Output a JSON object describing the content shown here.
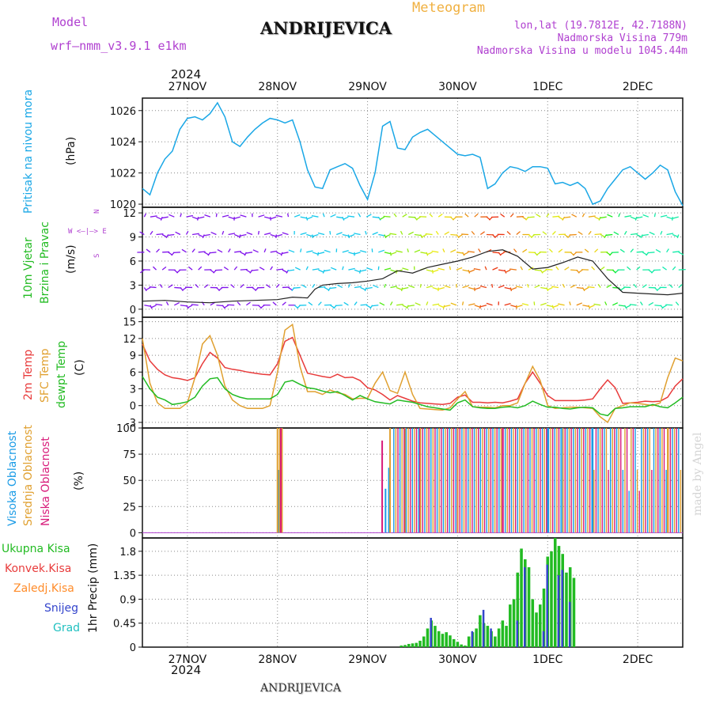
{
  "header": {
    "model_label": "Model",
    "model_name": "wrf—nmm_v3.9.1  e1km",
    "title": "ANDRIJEVICA",
    "meteogram": "Meteogram",
    "lonlat": "lon,lat (19.7812E, 42.7188N)",
    "elevation": "Nadmorska Visina 779m",
    "model_elevation": "Nadmorska Visina u modelu 1045.44m",
    "year_top": "2024",
    "year_bottom": "2024",
    "footer": "ANDRIJEVICA",
    "credit": "made by Angel"
  },
  "colors": {
    "pressure": "#1aa7e6",
    "temp2m": "#e83b3b",
    "sfctemp": "#e0a030",
    "dewpt": "#22bb22",
    "high_cloud": "#1a9be6",
    "mid_cloud": "#e0a030",
    "low_cloud": "#d81b7a",
    "total_precip": "#22bb22",
    "conv_precip": "#e83b3b",
    "grid_precip": "#ff8c2a",
    "snow": "#3344cc",
    "graupel": "#20c0c0",
    "purple_text": "#b040d0",
    "orange_text": "#f0b040"
  },
  "panel_labels": {
    "pressure": [
      "Pritisak na nivou mora",
      "(hPa)"
    ],
    "wind": [
      "10m Vjetar",
      "Brzina i Pravac",
      "(m/s)"
    ],
    "wind_compass": [
      "N",
      "W  <—|—>  E",
      "S"
    ],
    "temp": [
      "2m Temp",
      "SFC Temp",
      "dewpt Temp",
      "(C)"
    ],
    "cloud": [
      "Visoka Oblacnost",
      "Srednja Oblacnost",
      "Niska Oblacnost",
      "(%)"
    ],
    "precip_legend": [
      "Ukupna Kisa",
      "Konvek.Kisa",
      "Zaledj.Kisa",
      "Snijeg",
      "Grad"
    ],
    "precip_axis": "1hr Precip (mm)"
  },
  "chart_data": [
    {
      "type": "line",
      "name": "pressure",
      "x_ticks": [
        "27NOV",
        "28NOV",
        "29NOV",
        "30NOV",
        "1DEC",
        "2DEC"
      ],
      "y_ticks": [
        "1020",
        "1022",
        "1024",
        "1026"
      ],
      "ylim": [
        1019.8,
        1026.8
      ],
      "x_range_hours": [
        0,
        144
      ],
      "x_hours": [
        0,
        2,
        4,
        6,
        8,
        10,
        12,
        14,
        16,
        18,
        20,
        22,
        24,
        26,
        28,
        30,
        32,
        34,
        36,
        38,
        40,
        42,
        44,
        46,
        48,
        50,
        52,
        54,
        56,
        58,
        60,
        62,
        64,
        66,
        68,
        70,
        72,
        74,
        76,
        78,
        80,
        82,
        84,
        86,
        88,
        90,
        92,
        94,
        96,
        98,
        100,
        102,
        104,
        106,
        108,
        110,
        112,
        114,
        116,
        118,
        120,
        122,
        124,
        126,
        128,
        130,
        132,
        134,
        136,
        138,
        140,
        142,
        144
      ],
      "values": [
        1021.0,
        1020.6,
        1022.0,
        1022.9,
        1023.4,
        1024.8,
        1025.5,
        1025.6,
        1025.4,
        1025.8,
        1026.5,
        1025.6,
        1024.0,
        1023.7,
        1024.3,
        1024.8,
        1025.2,
        1025.5,
        1025.4,
        1025.2,
        1025.4,
        1024.0,
        1022.2,
        1021.1,
        1021.0,
        1022.2,
        1022.4,
        1022.6,
        1022.3,
        1021.2,
        1020.3,
        1022.0,
        1025.0,
        1025.3,
        1023.6,
        1023.5,
        1024.3,
        1024.6,
        1024.8,
        1024.4,
        1024.0,
        1023.6,
        1023.2,
        1023.1,
        1023.2,
        1023.0,
        1021.0,
        1021.3,
        1022.0,
        1022.4,
        1022.3,
        1022.1,
        1022.4,
        1022.4,
        1022.3,
        1021.3,
        1021.4,
        1021.2,
        1021.4,
        1021.0,
        1020.0,
        1020.2,
        1021.0,
        1021.6,
        1022.2,
        1022.4,
        1022.0,
        1021.6,
        1022.0,
        1022.5,
        1022.2,
        1020.8,
        1019.9
      ]
    },
    {
      "type": "line",
      "name": "wind_speed",
      "y_ticks": [
        "0",
        "3",
        "6",
        "9",
        "12"
      ],
      "ylim": [
        -1,
        12.7
      ],
      "x_hours": [
        0,
        6,
        12,
        18,
        24,
        30,
        36,
        40,
        44,
        46,
        48,
        52,
        56,
        60,
        64,
        68,
        72,
        76,
        80,
        84,
        88,
        92,
        96,
        100,
        104,
        108,
        112,
        116,
        120,
        124,
        128,
        132,
        136,
        140,
        144
      ],
      "values": [
        1.0,
        1.1,
        0.9,
        0.8,
        1.0,
        1.1,
        1.2,
        1.5,
        1.4,
        2.5,
        3.0,
        3.2,
        3.3,
        3.5,
        3.8,
        4.8,
        4.5,
        5.2,
        5.6,
        6.0,
        6.5,
        7.2,
        7.4,
        6.6,
        5.0,
        5.2,
        5.8,
        6.5,
        6.0,
        3.8,
        2.1,
        2.0,
        1.9,
        1.8,
        2.0
      ]
    },
    {
      "type": "line",
      "name": "temperature",
      "y_ticks": [
        "-3",
        "0",
        "3",
        "6",
        "9",
        "12",
        "15"
      ],
      "ylim": [
        -4,
        15.8
      ],
      "x_hours": [
        0,
        2,
        4,
        6,
        8,
        10,
        12,
        14,
        16,
        18,
        20,
        22,
        24,
        26,
        28,
        30,
        32,
        34,
        36,
        38,
        40,
        42,
        44,
        46,
        48,
        50,
        52,
        54,
        56,
        58,
        60,
        62,
        64,
        66,
        68,
        70,
        72,
        74,
        76,
        78,
        80,
        82,
        84,
        86,
        88,
        90,
        92,
        94,
        96,
        98,
        100,
        102,
        104,
        106,
        108,
        110,
        112,
        114,
        116,
        118,
        120,
        122,
        124,
        126,
        128,
        130,
        132,
        134,
        136,
        138,
        140,
        142,
        144
      ],
      "series": [
        {
          "name": "2m Temp",
          "values": [
            11.0,
            8.0,
            6.5,
            5.5,
            5.0,
            4.8,
            4.5,
            5.0,
            7.5,
            9.5,
            8.5,
            6.8,
            6.5,
            6.3,
            6.0,
            5.8,
            5.6,
            5.5,
            7.5,
            11.5,
            12.2,
            9.0,
            5.8,
            5.5,
            5.2,
            5.0,
            5.6,
            5.0,
            5.1,
            4.5,
            3.2,
            2.8,
            2.0,
            1.0,
            1.8,
            1.3,
            0.8,
            0.5,
            0.4,
            0.3,
            0.2,
            0.4,
            1.5,
            1.9,
            0.6,
            0.6,
            0.5,
            0.6,
            0.5,
            0.8,
            1.2,
            4.0,
            6.0,
            4.0,
            1.8,
            0.9,
            0.9,
            0.9,
            0.9,
            1.0,
            1.2,
            3.0,
            4.6,
            3.2,
            0.4,
            0.5,
            0.6,
            0.8,
            0.7,
            0.8,
            1.5,
            3.5,
            4.8
          ]
        },
        {
          "name": "SFC Temp",
          "values": [
            12.0,
            4.0,
            0.5,
            -0.5,
            -0.5,
            -0.5,
            0.5,
            5.0,
            11.0,
            12.5,
            9.0,
            3.5,
            1.0,
            0.0,
            -0.5,
            -0.5,
            -0.5,
            0.0,
            6.0,
            13.5,
            14.5,
            7.0,
            2.5,
            2.5,
            2.0,
            2.8,
            2.3,
            2.0,
            1.2,
            1.3,
            1.3,
            4.0,
            6.0,
            2.7,
            2.2,
            6.0,
            2.0,
            -0.5,
            -0.6,
            -0.7,
            -0.8,
            -0.4,
            1.2,
            2.5,
            -0.2,
            -0.3,
            -0.3,
            -0.4,
            0.0,
            0.0,
            0.5,
            4.0,
            7.0,
            4.5,
            0.0,
            -0.5,
            -0.4,
            -0.3,
            -0.3,
            -0.4,
            -0.5,
            -2.0,
            -3.0,
            -0.5,
            0.0,
            0.5,
            0.4,
            0.2,
            0.0,
            0.5,
            5.0,
            8.5,
            8.0
          ]
        },
        {
          "name": "dewpt Temp",
          "values": [
            5.2,
            3.0,
            1.5,
            1.0,
            0.2,
            0.4,
            0.7,
            1.5,
            3.5,
            4.8,
            5.0,
            3.0,
            2.0,
            1.5,
            1.2,
            1.2,
            1.2,
            1.2,
            2.0,
            4.2,
            4.5,
            3.8,
            3.2,
            3.0,
            2.6,
            2.3,
            2.5,
            1.8,
            1.0,
            1.8,
            1.2,
            0.7,
            0.5,
            0.3,
            1.0,
            0.8,
            0.6,
            0.2,
            -0.2,
            -0.4,
            -0.6,
            -0.8,
            0.5,
            1.0,
            -0.2,
            -0.4,
            -0.5,
            -0.5,
            -0.3,
            -0.2,
            -0.4,
            0.0,
            0.8,
            0.2,
            -0.3,
            -0.3,
            -0.5,
            -0.6,
            -0.4,
            -0.3,
            -0.4,
            -1.5,
            -1.8,
            -0.5,
            -0.4,
            -0.2,
            -0.2,
            -0.2,
            0.2,
            -0.2,
            -0.4,
            0.5,
            1.5
          ]
        }
      ]
    },
    {
      "type": "bar",
      "name": "cloud_cover",
      "y_ticks": [
        "0",
        "25",
        "50",
        "75",
        "100"
      ],
      "ylim": [
        -5,
        100
      ],
      "note": "alternating high/mid/low cloud bars from ~29NOV 06h onward, mostly 100%",
      "series": [
        {
          "name": "Visoka Oblacnost",
          "x_hours": [
            36.3,
            64.8,
            65.7,
            108,
            112,
            120
          ],
          "values": [
            60,
            42,
            62,
            100,
            100,
            100
          ]
        },
        {
          "name": "Srednja Oblacnost",
          "x_hours": [
            36.0,
            36.6,
            37.2,
            66.0,
            70.0,
            140
          ],
          "values": [
            100,
            100,
            100,
            100,
            100,
            100
          ]
        },
        {
          "name": "Niska Oblacnost",
          "x_hours": [
            36.9,
            63.9,
            74,
            84,
            96
          ],
          "values": [
            100,
            88,
            100,
            100,
            100
          ]
        }
      ]
    },
    {
      "type": "bar",
      "name": "precipitation",
      "y_ticks": [
        "0",
        "0.45",
        "0.9",
        "1.35",
        "1.8"
      ],
      "ylim": [
        0,
        2.05
      ],
      "series": [
        {
          "name": "Ukupna Kisa",
          "x_hours": [
            69,
            70,
            71,
            72,
            73,
            74,
            75,
            76,
            77,
            78,
            79,
            80,
            81,
            82,
            83,
            84,
            85,
            86,
            87,
            88,
            89,
            90,
            91,
            92,
            93,
            94,
            95,
            96,
            97,
            98,
            99,
            100,
            101,
            102,
            103,
            104,
            105,
            106,
            107,
            108,
            109,
            110,
            111,
            112,
            113,
            114,
            115
          ],
          "values": [
            0.03,
            0.04,
            0.06,
            0.07,
            0.08,
            0.12,
            0.2,
            0.35,
            0.5,
            0.4,
            0.3,
            0.25,
            0.28,
            0.22,
            0.15,
            0.1,
            0.05,
            0.03,
            0.2,
            0.28,
            0.35,
            0.6,
            0.45,
            0.4,
            0.3,
            0.2,
            0.35,
            0.5,
            0.4,
            0.8,
            0.9,
            1.4,
            1.85,
            1.65,
            1.5,
            0.9,
            0.65,
            0.8,
            1.1,
            1.7,
            1.8,
            2.05,
            1.9,
            1.75,
            1.4,
            1.5,
            1.3
          ]
        },
        {
          "name": "Snijeg",
          "x_hours": [
            77,
            88,
            91,
            93,
            100,
            102,
            107,
            108,
            111,
            112,
            114
          ],
          "values": [
            0.55,
            0.3,
            0.7,
            0.35,
            0.5,
            1.5,
            0.3,
            1.55,
            1.35,
            1.45,
            0.85
          ]
        }
      ]
    }
  ]
}
